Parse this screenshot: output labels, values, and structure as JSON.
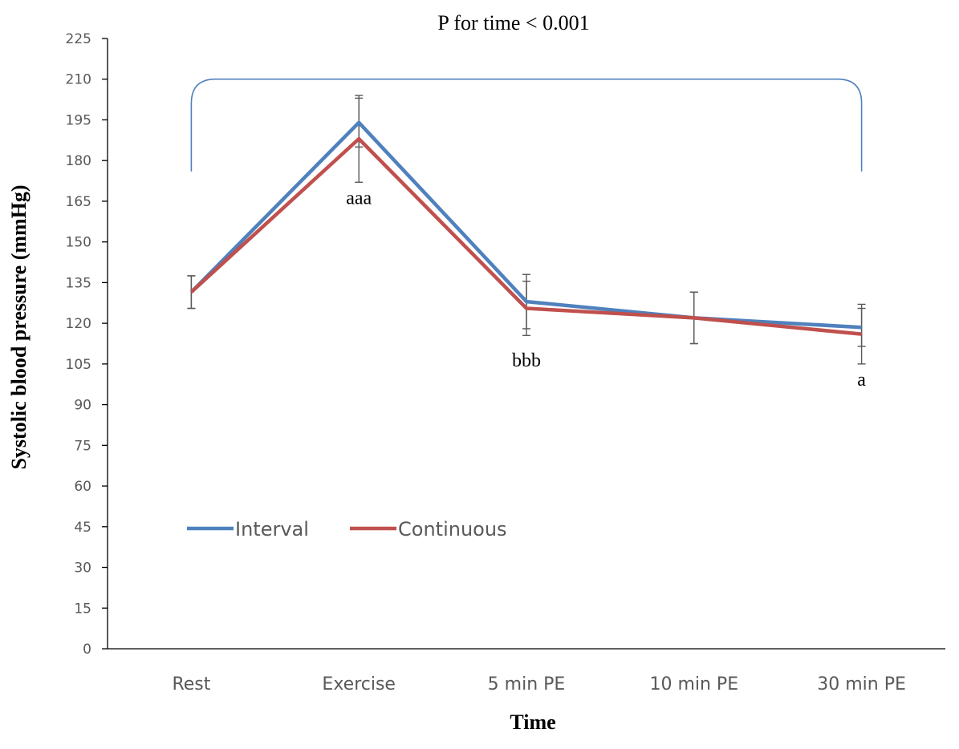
{
  "chart_data": {
    "type": "line",
    "title": "P for time < 0.001",
    "xlabel": "Time",
    "ylabel": "Systolic blood pressure (mmHg)",
    "ylim": [
      0,
      225
    ],
    "y_tick_step": 15,
    "categories": [
      "Rest",
      "Exercise",
      "5 min PE",
      "10 min PE",
      "30 min PE"
    ],
    "series": [
      {
        "name": "Interval",
        "color": "#4f81bd",
        "values": [
          131.5,
          194,
          128,
          122,
          118.5
        ],
        "error": [
          6,
          9,
          10,
          9.5,
          7
        ]
      },
      {
        "name": "Continuous",
        "color": "#c0504d",
        "values": [
          131.5,
          188,
          125.5,
          122,
          116
        ],
        "error": [
          6,
          16,
          10,
          9.5,
          11
        ]
      }
    ],
    "annotations": [
      {
        "text": "aaa",
        "category": "Exercise",
        "y": 164
      },
      {
        "text": "bbb",
        "category": "5 min PE",
        "y": 104
      },
      {
        "text": "a",
        "category": "30 min PE",
        "y": 97
      }
    ],
    "bracket": {
      "from": "Rest",
      "to": "30 min PE",
      "y": 210,
      "bottom_y": 176,
      "color": "#4f81bd"
    },
    "grid": false,
    "legend_position": "center-left"
  }
}
